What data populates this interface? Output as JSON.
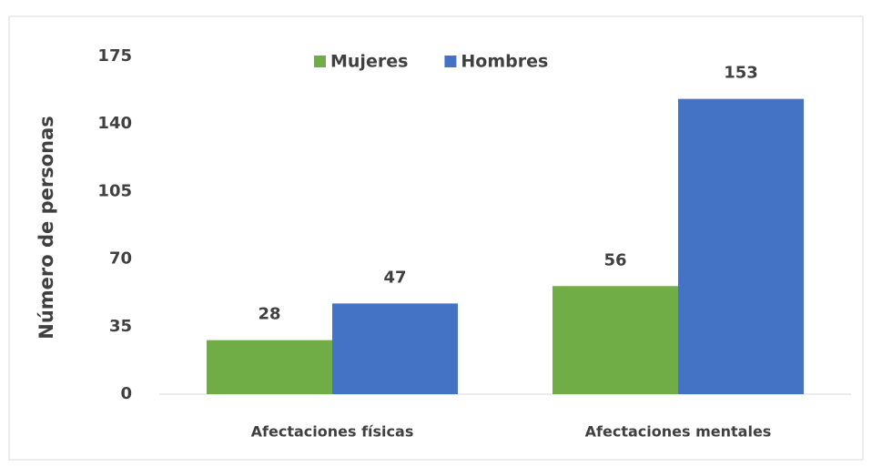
{
  "chart_data": {
    "type": "bar",
    "y_label": "Número de personas",
    "categories": [
      "Afectaciones físicas",
      "Afectaciones mentales"
    ],
    "series": [
      {
        "name": "Mujeres",
        "color": "#70ad47",
        "values": [
          28,
          56
        ]
      },
      {
        "name": "Hombres",
        "color": "#4472c4",
        "values": [
          47,
          153
        ]
      }
    ],
    "ylim": [
      0,
      175
    ],
    "yticks": [
      0,
      35,
      70,
      105,
      140,
      175
    ],
    "grid": false,
    "legend": "top"
  }
}
